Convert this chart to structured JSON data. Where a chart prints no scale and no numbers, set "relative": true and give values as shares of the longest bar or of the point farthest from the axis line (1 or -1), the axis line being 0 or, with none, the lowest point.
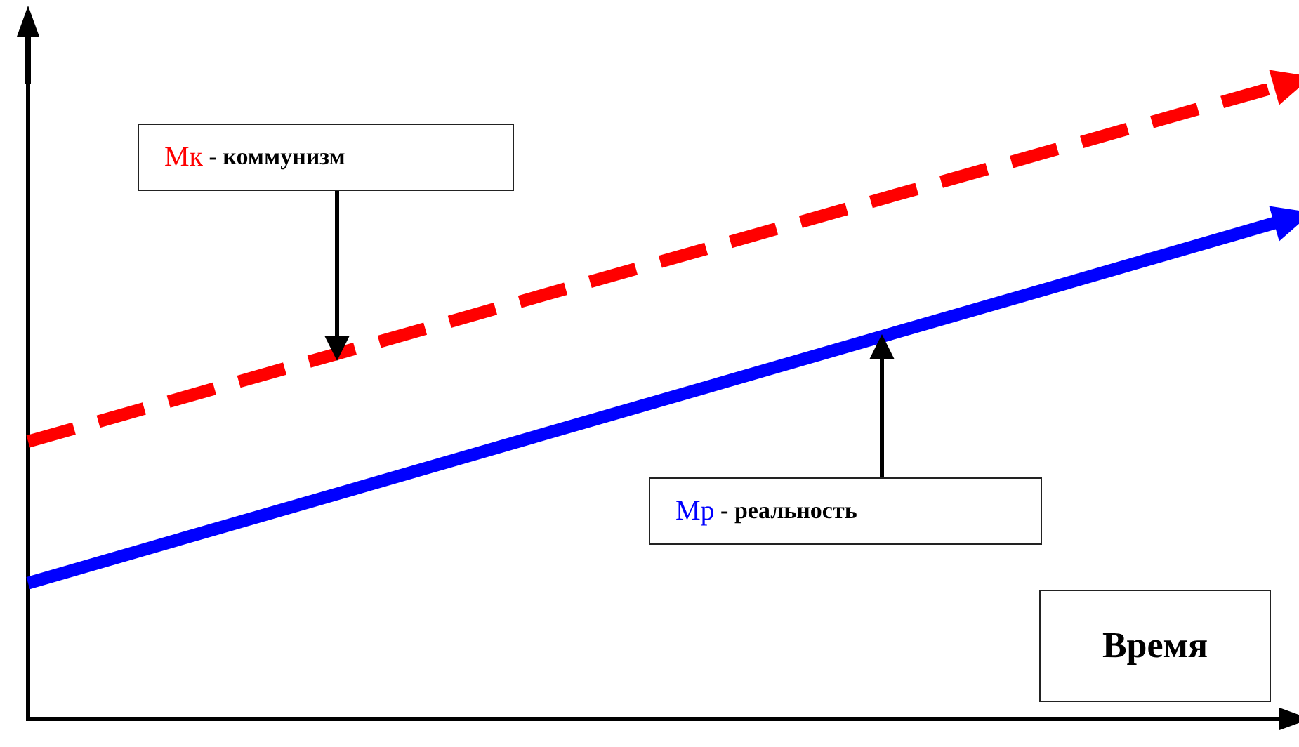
{
  "chart_data": {
    "type": "line",
    "xlabel": "Время",
    "relative": true,
    "categories": [
      null,
      null
    ],
    "legend": false,
    "grid": false,
    "series": [
      {
        "name": "Мк - коммунизм",
        "color": "#ff0000",
        "values": [
          0.437,
          1
        ],
        "line_style": "dashed"
      },
      {
        "name": "Мр - реальность",
        "color": "#0000ff",
        "values": [
          0.214,
          0.786
        ],
        "line_style": "solid"
      }
    ]
  }
}
